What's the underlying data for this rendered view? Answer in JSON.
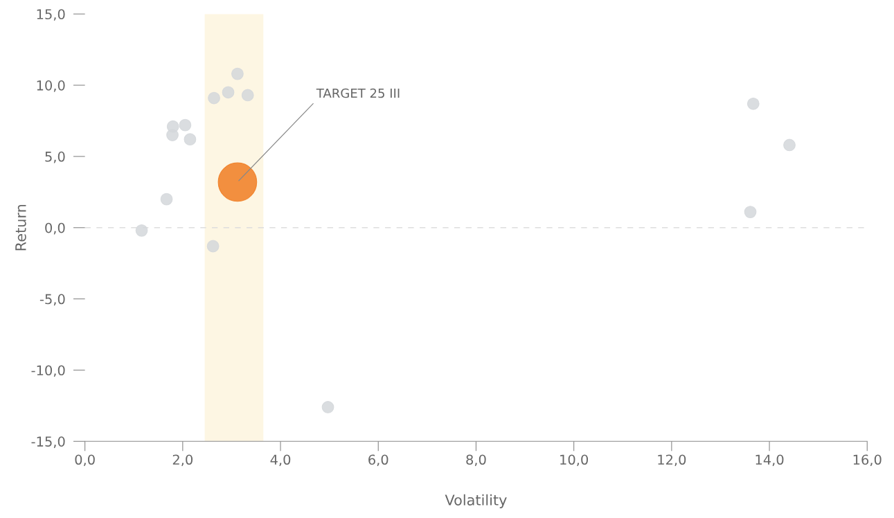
{
  "chart_data": {
    "type": "bubble",
    "xlabel": "Volatility",
    "ylabel": "Return",
    "xlim": [
      0,
      16
    ],
    "ylim": [
      -15,
      15
    ],
    "xticks": [
      {
        "value": 0,
        "label": "0,0"
      },
      {
        "value": 2,
        "label": "2,0"
      },
      {
        "value": 4,
        "label": "4,0"
      },
      {
        "value": 6,
        "label": "6,0"
      },
      {
        "value": 8,
        "label": "8,0"
      },
      {
        "value": 10,
        "label": "10,0"
      },
      {
        "value": 12,
        "label": "12,0"
      },
      {
        "value": 14,
        "label": "14,0"
      },
      {
        "value": 16,
        "label": "16,0"
      }
    ],
    "yticks": [
      {
        "value": -15,
        "label": "-15,0"
      },
      {
        "value": -10,
        "label": "-10,0"
      },
      {
        "value": -5,
        "label": "-5,0"
      },
      {
        "value": 0,
        "label": "0,0"
      },
      {
        "value": 5,
        "label": "5,0"
      },
      {
        "value": 10,
        "label": "10,0"
      },
      {
        "value": 15,
        "label": "15,0"
      }
    ],
    "series": [
      {
        "color": "#d3d7db",
        "x": [
          1.16,
          1.67,
          1.79,
          1.8,
          2.05,
          2.15,
          2.62,
          2.64,
          2.93,
          3.12,
          3.33,
          4.97,
          13.61,
          13.67,
          14.41
        ],
        "values": [
          -0.2,
          2.0,
          6.5,
          7.1,
          7.2,
          6.2,
          -1.3,
          9.1,
          9.5,
          10.8,
          9.3,
          -12.6,
          1.1,
          8.7,
          5.8
        ],
        "sizes": [
          0.09,
          0.09,
          0.09,
          0.09,
          0.09,
          0.09,
          0.09,
          0.09,
          0.09,
          0.09,
          0.09,
          0.09,
          0.09,
          0.09,
          0.09
        ]
      },
      {
        "color": "#f07d22",
        "x": [
          3.12
        ],
        "values": [
          3.2
        ],
        "sizes": [
          1
        ]
      }
    ],
    "bands": [
      {
        "axis": "x",
        "from": 2.45,
        "to": 3.65,
        "color": "#fdf6e3"
      }
    ],
    "ref_lines": [
      {
        "axis": "y",
        "value": 0,
        "color": "#dddddd",
        "line_style": "dashed"
      }
    ],
    "annotations": [
      {
        "text": "TARGET 25 III",
        "x": 3.12,
        "y": 3.2
      }
    ],
    "grid": false,
    "legend": false
  }
}
